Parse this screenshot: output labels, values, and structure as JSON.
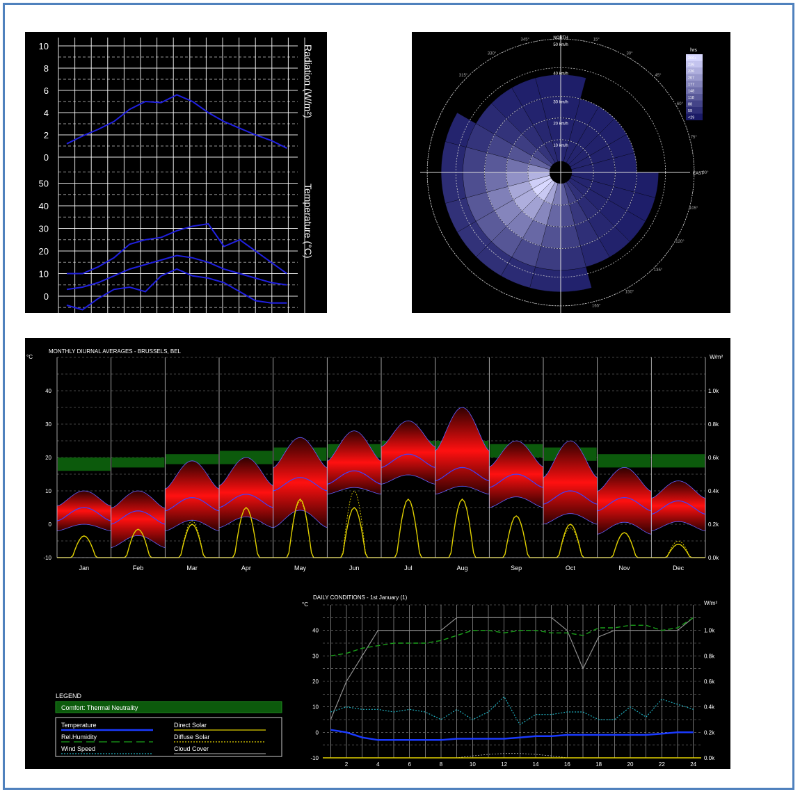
{
  "chart_data": [
    {
      "type": "line",
      "id": "radiation-temperature",
      "colors": {
        "line": "#2020e0",
        "grid": "#ffffff",
        "background": "#000000"
      },
      "radiation": {
        "ylabel": "Radiation (W/m²)",
        "ticks": [
          "10",
          "8",
          "6",
          "4",
          "2",
          "0"
        ],
        "ylim": [
          0,
          10
        ],
        "x": [
          1,
          2,
          3,
          4,
          5,
          6,
          7,
          8,
          9,
          10,
          11,
          12,
          13,
          14,
          15
        ],
        "values": [
          1.2,
          1.9,
          2.5,
          3.2,
          4.3,
          5.0,
          4.9,
          5.6,
          5.0,
          4.0,
          3.2,
          2.6,
          2.0,
          1.5,
          0.8
        ]
      },
      "temperature": {
        "ylabel": "Temperature (°C)",
        "ticks": [
          "50",
          "40",
          "30",
          "20",
          "10",
          "0"
        ],
        "ylim": [
          -5,
          55
        ],
        "x": [
          1,
          2,
          3,
          4,
          5,
          6,
          7,
          8,
          9,
          10,
          11,
          12,
          13,
          14,
          15
        ],
        "series": [
          {
            "values": [
              10,
              10,
              13,
              17,
              23,
              25,
              26,
              29,
              31,
              32,
              22,
              25,
              20,
              15,
              10
            ]
          },
          {
            "values": [
              3,
              4,
              6,
              9,
              12,
              14,
              16,
              18,
              17,
              15,
              12,
              10,
              8,
              6,
              5
            ]
          },
          {
            "values": [
              -4,
              -6,
              -1,
              3,
              4,
              2,
              9,
              12,
              9,
              8,
              6,
              2,
              -2,
              -3,
              -3
            ]
          }
        ]
      }
    },
    {
      "type": "heatmap",
      "id": "wind-rose",
      "direction_labels": {
        "north": "NORTH",
        "east": "EAST"
      },
      "angle_ticks": [
        "15°",
        "30°",
        "45°",
        "60°",
        "75°",
        "105°",
        "120°",
        "135°",
        "150°",
        "165°",
        "315°",
        "330°",
        "345°",
        "90°"
      ],
      "ring_labels": [
        "10 km/h",
        "20 km/h",
        "30 km/h",
        "40 km/h",
        "50 km/h"
      ],
      "legend": {
        "unit": "hrs",
        "entries": [
          "266+",
          "236",
          "236",
          "207",
          "177",
          "148",
          "118",
          "88",
          "59",
          "<29"
        ]
      },
      "colors": {
        "low": "#1a1a66",
        "high": "#d8d8ff",
        "background": "#000000"
      }
    },
    {
      "type": "area",
      "id": "monthly-diurnal",
      "title": "MONTHLY DIURNAL AVERAGES - BRUSSELS, BEL",
      "left_unit": "°C",
      "right_unit": "W/m²",
      "y_ticks": [
        "40",
        "30",
        "20",
        "10",
        "0",
        "-10"
      ],
      "right_ticks": [
        "1.0k",
        "0.8k",
        "0.6k",
        "0.4k",
        "0.2k",
        "0.0k"
      ],
      "ylim": [
        -10,
        50
      ],
      "months": [
        "Jan",
        "Feb",
        "Mar",
        "Apr",
        "May",
        "Jun",
        "Jul",
        "Aug",
        "Sep",
        "Oct",
        "Nov",
        "Dec"
      ],
      "temp_min": [
        -2,
        -7,
        -2,
        -1,
        -1,
        9,
        12,
        9,
        5,
        0,
        -3,
        -2
      ],
      "temp_avg": [
        3,
        2,
        6,
        7,
        12,
        14,
        19,
        15,
        13,
        8,
        6,
        5
      ],
      "temp_max": [
        10,
        10,
        19,
        20,
        26,
        28,
        31,
        35,
        25,
        25,
        17,
        13
      ],
      "comfort_low": [
        16,
        17,
        18,
        18,
        19,
        20,
        21,
        21,
        20,
        19,
        17,
        17
      ],
      "comfort_high": [
        20,
        20,
        21,
        22,
        23,
        24,
        25,
        25,
        24,
        23,
        21,
        21
      ],
      "direct_solar_peak": [
        0.13,
        0.17,
        0.2,
        0.3,
        0.35,
        0.3,
        0.35,
        0.35,
        0.25,
        0.2,
        0.15,
        0.08
      ],
      "diffuse_solar_peak": [
        0.13,
        0.17,
        0.22,
        0.3,
        0.34,
        0.4,
        0.35,
        0.35,
        0.25,
        0.18,
        0.15,
        0.1
      ],
      "colors": {
        "temp": "#ff1010",
        "avg": "#4040ff",
        "comfort": "#0c5a0c",
        "solar": "#e0d000"
      }
    },
    {
      "type": "line",
      "id": "daily-conditions",
      "title": "DAILY CONDITIONS - 1st January (1)",
      "left_unit": "°C",
      "right_unit": "W/m²",
      "y_ticks": [
        "40",
        "30",
        "20",
        "10",
        "0",
        "-10"
      ],
      "right_ticks": [
        "1.0k",
        "0.8k",
        "0.6k",
        "0.4k",
        "0.2k",
        "0.0k"
      ],
      "x_ticks": [
        "2",
        "4",
        "6",
        "8",
        "10",
        "12",
        "14",
        "16",
        "18",
        "20",
        "22",
        "24"
      ],
      "ylim": [
        -10,
        50
      ],
      "x": [
        1,
        2,
        3,
        4,
        5,
        6,
        7,
        8,
        9,
        10,
        11,
        12,
        13,
        14,
        15,
        16,
        17,
        18,
        19,
        20,
        21,
        22,
        23,
        24
      ],
      "temperature": [
        1,
        0,
        -2,
        -3,
        -3,
        -3,
        -3,
        -3,
        -2.5,
        -2.5,
        -2.5,
        -2.5,
        -2,
        -1.5,
        -1.5,
        -1,
        -1,
        -1,
        -1,
        -1,
        -1,
        -0.5,
        0,
        0
      ],
      "rel_humidity": [
        30,
        31,
        33,
        34,
        35,
        35,
        35,
        36,
        38,
        40,
        40,
        39,
        40,
        40,
        39,
        39,
        38,
        41,
        41,
        42,
        42,
        40,
        41,
        45
      ],
      "wind_speed": [
        8,
        10,
        9,
        9,
        8,
        9,
        8,
        5,
        9,
        5,
        8,
        14,
        3,
        7,
        7,
        8,
        8,
        5,
        5,
        10,
        6,
        13,
        11,
        9
      ],
      "cloud_cover": [
        0.3,
        0.6,
        0.8,
        1.0,
        1.0,
        1.0,
        1.0,
        1.0,
        1.1,
        1.1,
        1.1,
        1.1,
        1.1,
        1.1,
        1.1,
        1.0,
        0.7,
        0.95,
        1.0,
        1.0,
        1.0,
        1.0,
        1.0,
        1.1
      ],
      "colors": {
        "temperature": "#1a3aff",
        "rel_humidity": "#1aa01a",
        "wind_speed": "#20b0c0",
        "cloud_cover": "#909090",
        "solar": "#e0d000"
      }
    }
  ],
  "legend": {
    "title": "LEGEND",
    "comfort_label": "Comfort: Thermal Neutrality",
    "items": [
      {
        "label": "Temperature",
        "color": "#1a3aff",
        "style": "solid"
      },
      {
        "label": "Direct Solar",
        "color": "#e0d000",
        "style": "solid"
      },
      {
        "label": "Rel.Humidity",
        "color": "#1aa01a",
        "style": "dashed"
      },
      {
        "label": "Diffuse Solar",
        "color": "#e0d000",
        "style": "dotted"
      },
      {
        "label": "Wind Speed",
        "color": "#20b0c0",
        "style": "dotted"
      },
      {
        "label": "Cloud Cover",
        "color": "#909090",
        "style": "solid"
      }
    ]
  }
}
